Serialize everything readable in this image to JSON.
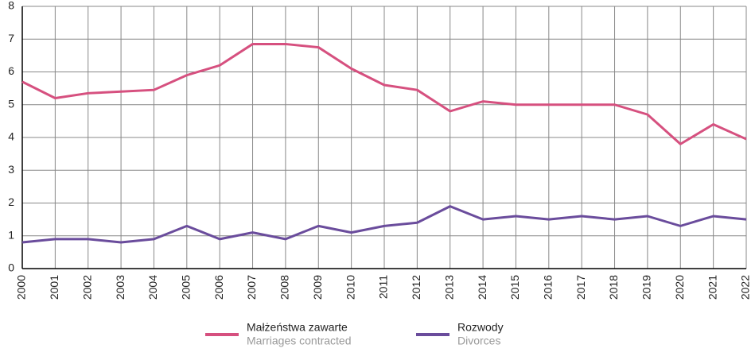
{
  "chart_data": {
    "type": "line",
    "categories": [
      "2000",
      "2001",
      "2002",
      "2003",
      "2004",
      "2005",
      "2006",
      "2007",
      "2008",
      "2009",
      "2010",
      "2011",
      "2012",
      "2013",
      "2014",
      "2015",
      "2016",
      "2017",
      "2018",
      "2019",
      "2020",
      "2021",
      "2022"
    ],
    "series": [
      {
        "name": "Małżeństwa zawarte",
        "subname": "Marriages contracted",
        "color": "#d6507f",
        "values": [
          5.7,
          5.2,
          5.35,
          5.4,
          5.45,
          5.9,
          6.2,
          6.85,
          6.85,
          6.75,
          6.1,
          5.6,
          5.45,
          4.8,
          5.1,
          5.0,
          5.0,
          5.0,
          5.0,
          4.7,
          3.8,
          4.4,
          3.95
        ]
      },
      {
        "name": "Rozwody",
        "subname": "Divorces",
        "color": "#6a4c9c",
        "values": [
          0.8,
          0.9,
          0.9,
          0.8,
          0.9,
          1.3,
          0.9,
          1.1,
          0.9,
          1.3,
          1.1,
          1.3,
          1.4,
          1.9,
          1.5,
          1.6,
          1.5,
          1.6,
          1.5,
          1.6,
          1.3,
          1.6,
          1.5
        ]
      }
    ],
    "ylim": [
      0,
      8
    ],
    "yticks": [
      0,
      1,
      2,
      3,
      4,
      5,
      6,
      7,
      8
    ],
    "grid": true
  }
}
